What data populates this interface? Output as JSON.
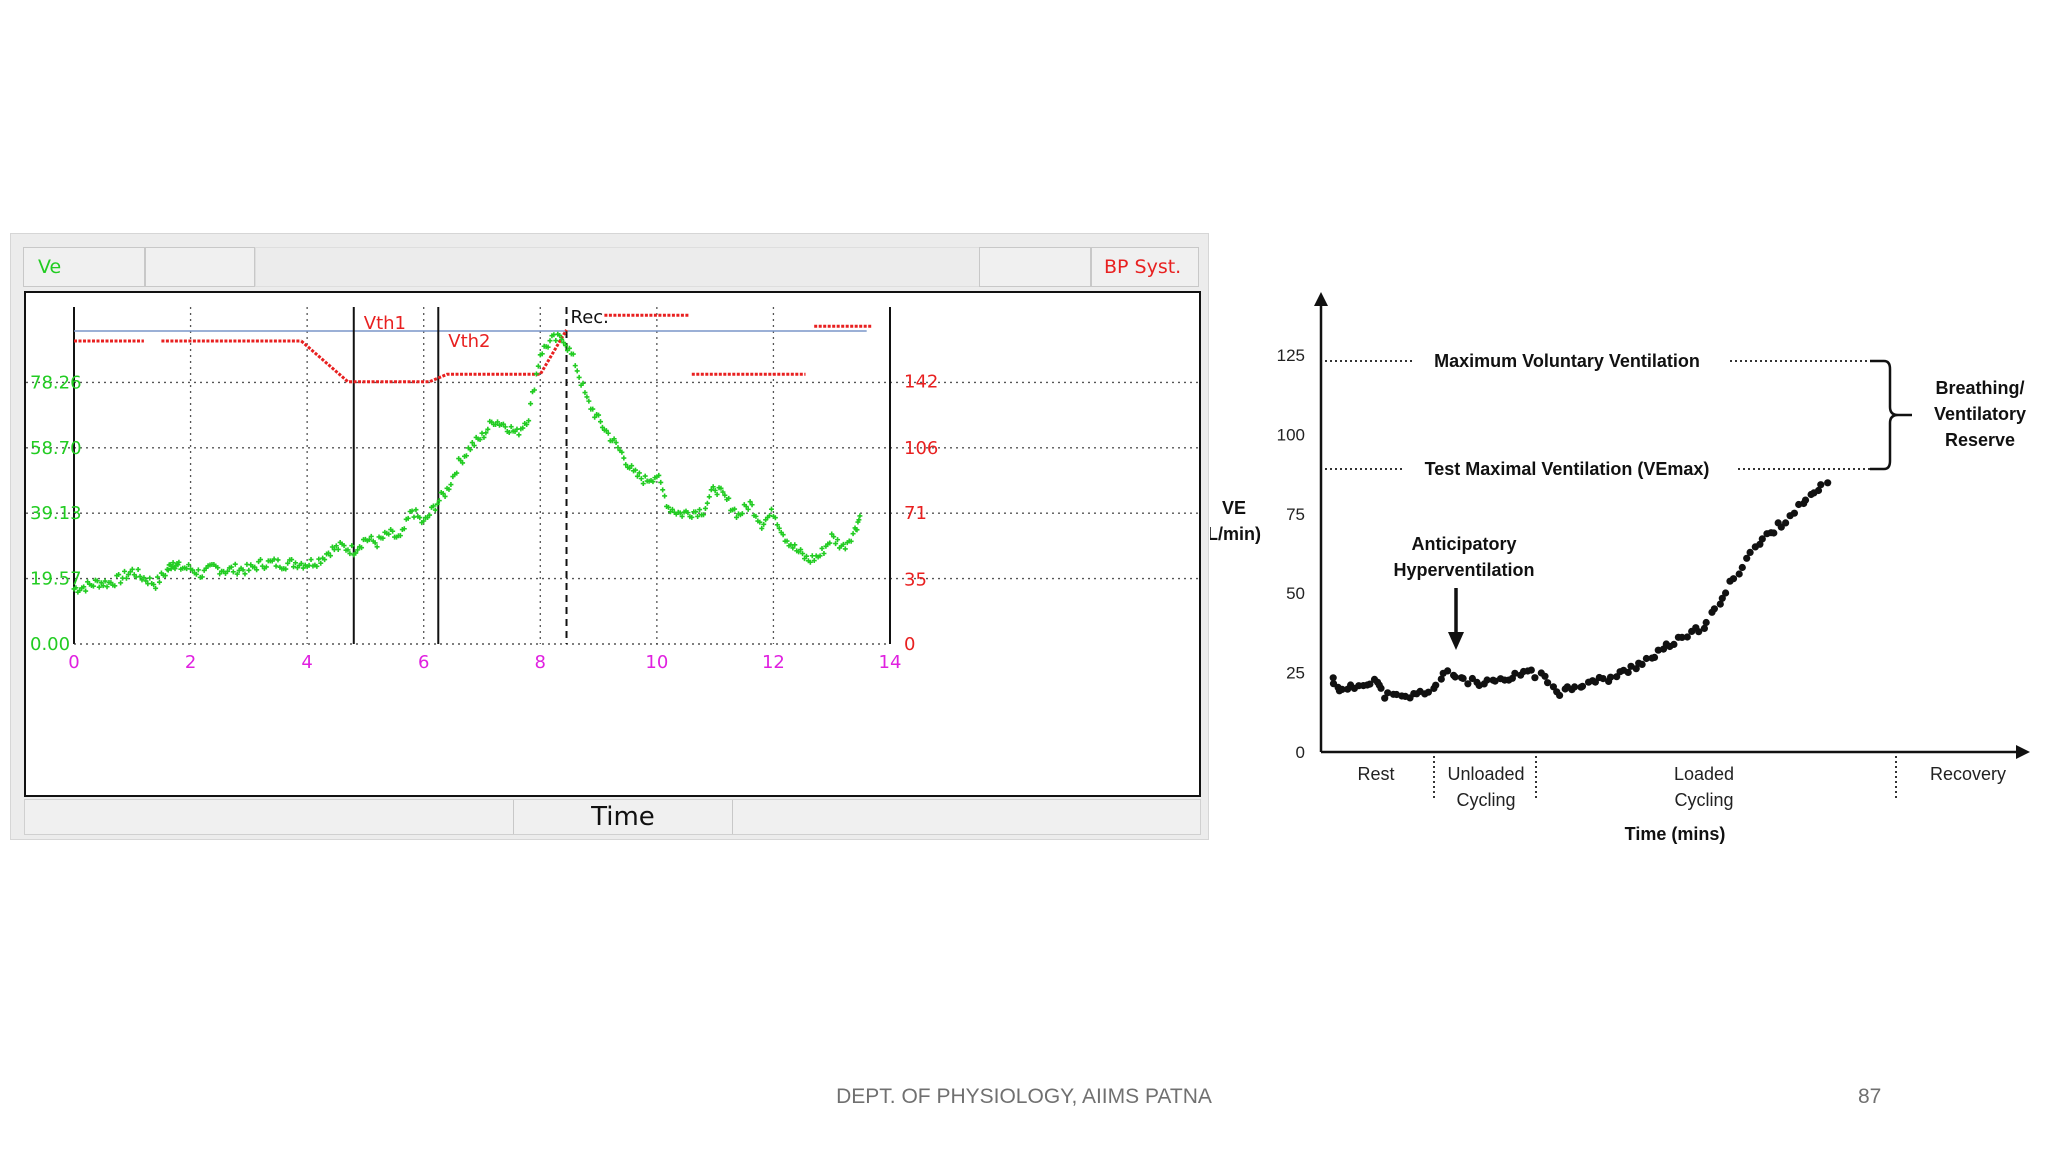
{
  "footer": {
    "text": "DEPT. OF PHYSIOLOGY, AIIMS PATNA",
    "page_number": "87"
  },
  "left_panel": {
    "header_left": "Ve",
    "header_right": "BP Syst.",
    "x_axis_title": "Time",
    "colors": {
      "ve": "#22cc22",
      "bp": "#e82020",
      "x_ticks": "#e020e0",
      "threshold": "#7a96c8"
    }
  },
  "right_panel": {
    "y_axis_title_line1": "VE",
    "y_axis_title_line2": "L/min)",
    "x_axis_title": "Time (mins)",
    "mvv_label": "Maximum Voluntary Ventilation",
    "vemax_label": "Test Maximal Ventilation (VEmax)",
    "reserve_label": [
      "Breathing/",
      "Ventilatory",
      "Reserve"
    ],
    "anticipatory_label": [
      "Anticipatory",
      "Hyperventilation"
    ],
    "phases": [
      {
        "lines": [
          "Rest"
        ]
      },
      {
        "lines": [
          "Unloaded",
          "Cycling"
        ]
      },
      {
        "lines": [
          "Loaded",
          "Cycling"
        ]
      },
      {
        "lines": [
          "Recovery"
        ]
      }
    ]
  },
  "chart_data": [
    {
      "type": "scatter",
      "x": {
        "label": "Time",
        "lim": [
          0,
          14
        ],
        "ticks": [
          "0",
          "2",
          "4",
          "6",
          "8",
          "10",
          "12",
          "14"
        ]
      },
      "y_left": {
        "label": "Ve",
        "lim": [
          0,
          97.83
        ],
        "ticks": [
          "0.00",
          "19.57",
          "39.13",
          "58.70",
          "78.26"
        ]
      },
      "y_right": {
        "label": "BP Syst.",
        "lim": [
          0,
          177
        ],
        "ticks": [
          "0",
          "35",
          "71",
          "106",
          "142"
        ]
      },
      "grid": true,
      "vertical_markers": [
        {
          "x": 4.8,
          "label": "Vth1",
          "style": "solid"
        },
        {
          "x": 6.25,
          "label": "Vth2",
          "style": "solid"
        },
        {
          "x": 8.45,
          "label": "Rec.",
          "style": "dashed"
        }
      ],
      "series": [
        {
          "name": "Ve",
          "axis": "left",
          "points": [
            [
              0,
              16.5
            ],
            [
              0.2,
              17.2
            ],
            [
              0.4,
              18.4
            ],
            [
              0.6,
              18.2
            ],
            [
              0.8,
              19.5
            ],
            [
              1.0,
              21.8
            ],
            [
              1.2,
              19.7
            ],
            [
              1.4,
              18.0
            ],
            [
              1.6,
              22.0
            ],
            [
              1.7,
              24.5
            ],
            [
              1.8,
              23.0
            ],
            [
              2.0,
              22.6
            ],
            [
              2.2,
              20.8
            ],
            [
              2.4,
              23.0
            ],
            [
              2.6,
              22.0
            ],
            [
              2.8,
              22.5
            ],
            [
              3.0,
              22.2
            ],
            [
              3.2,
              24.0
            ],
            [
              3.4,
              24.3
            ],
            [
              3.6,
              23.9
            ],
            [
              3.8,
              24.3
            ],
            [
              4.0,
              24.0
            ],
            [
              4.2,
              25.0
            ],
            [
              4.4,
              28.0
            ],
            [
              4.6,
              29.2
            ],
            [
              4.8,
              28.0
            ],
            [
              5.0,
              31.5
            ],
            [
              5.2,
              30.3
            ],
            [
              5.4,
              33.0
            ],
            [
              5.6,
              31.5
            ],
            [
              5.8,
              40.0
            ],
            [
              6.0,
              36.0
            ],
            [
              6.2,
              41.5
            ],
            [
              6.4,
              46.0
            ],
            [
              6.6,
              54.0
            ],
            [
              6.8,
              59.0
            ],
            [
              7.0,
              62.0
            ],
            [
              7.2,
              67.0
            ],
            [
              7.4,
              65.5
            ],
            [
              7.6,
              63.0
            ],
            [
              7.8,
              68.0
            ],
            [
              8.0,
              87.0
            ],
            [
              8.2,
              91.0
            ],
            [
              8.4,
              91.5
            ],
            [
              8.6,
              84.0
            ],
            [
              8.8,
              73.0
            ],
            [
              9.0,
              67.0
            ],
            [
              9.2,
              62.0
            ],
            [
              9.4,
              57.0
            ],
            [
              9.6,
              51.0
            ],
            [
              9.8,
              49.0
            ],
            [
              10.0,
              50.5
            ],
            [
              10.2,
              41.0
            ],
            [
              10.4,
              39.0
            ],
            [
              10.6,
              39.5
            ],
            [
              10.8,
              40.0
            ],
            [
              11.0,
              47.0
            ],
            [
              11.2,
              43.0
            ],
            [
              11.4,
              38.5
            ],
            [
              11.6,
              42.0
            ],
            [
              11.8,
              36.0
            ],
            [
              12.0,
              39.5
            ],
            [
              12.2,
              32.0
            ],
            [
              12.4,
              28.0
            ],
            [
              12.6,
              25.0
            ],
            [
              12.8,
              26.5
            ],
            [
              13.0,
              32.0
            ],
            [
              13.2,
              29.0
            ],
            [
              13.4,
              34.0
            ],
            [
              13.5,
              39.0
            ]
          ]
        },
        {
          "name": "BP Syst.",
          "axis": "right",
          "segments": [
            [
              [
                0,
                164
              ],
              [
                1.2,
                164
              ]
            ],
            [
              [
                1.5,
                164
              ],
              [
                3.9,
                164
              ]
            ],
            [
              [
                3.9,
                164
              ],
              [
                4.7,
                142
              ],
              [
                6.1,
                142
              ],
              [
                6.4,
                146
              ],
              [
                8.0,
                146
              ],
              [
                8.45,
                170
              ]
            ],
            [
              [
                9.1,
                178
              ],
              [
                10.55,
                178
              ]
            ],
            [
              [
                10.6,
                146
              ],
              [
                12.55,
                146
              ]
            ],
            [
              [
                12.7,
                172
              ],
              [
                13.7,
                172
              ]
            ]
          ]
        }
      ]
    },
    {
      "type": "scatter",
      "x": {
        "label": "Time (mins)",
        "categories": [
          "Rest",
          "Unloaded Cycling",
          "Loaded Cycling",
          "Recovery"
        ]
      },
      "y": {
        "label": "VE L/min)",
        "ticks": [
          "0",
          "25",
          "50",
          "75",
          "100",
          "125"
        ],
        "lim": [
          0,
          145
        ]
      },
      "reference_lines": [
        {
          "label": "Maximum Voluntary Ventilation",
          "y": 121
        },
        {
          "label": "Test Maximal Ventilation (VEmax)",
          "y": 88
        }
      ],
      "series": [
        {
          "name": "VE",
          "points": [
            [
              0.0,
              23
            ],
            [
              0.02,
              19
            ],
            [
              0.05,
              21
            ],
            [
              0.08,
              23
            ],
            [
              0.1,
              18
            ],
            [
              0.13,
              17
            ],
            [
              0.16,
              18
            ],
            [
              0.19,
              20
            ],
            [
              0.22,
              25
            ],
            [
              0.25,
              23
            ],
            [
              0.28,
              21
            ],
            [
              0.31,
              22
            ],
            [
              0.34,
              23
            ],
            [
              0.37,
              26
            ],
            [
              0.4,
              23
            ],
            [
              0.43,
              19
            ],
            [
              0.46,
              21
            ],
            [
              0.49,
              22
            ],
            [
              0.52,
              23
            ],
            [
              0.55,
              25
            ],
            [
              0.58,
              28
            ],
            [
              0.61,
              30
            ],
            [
              0.64,
              34
            ],
            [
              0.67,
              36
            ],
            [
              0.7,
              40
            ],
            [
              0.73,
              46
            ],
            [
              0.76,
              55
            ],
            [
              0.79,
              63
            ],
            [
              0.82,
              68
            ],
            [
              0.85,
              72
            ],
            [
              0.88,
              77
            ],
            [
              0.91,
              81
            ],
            [
              0.94,
              87
            ]
          ]
        }
      ]
    }
  ]
}
